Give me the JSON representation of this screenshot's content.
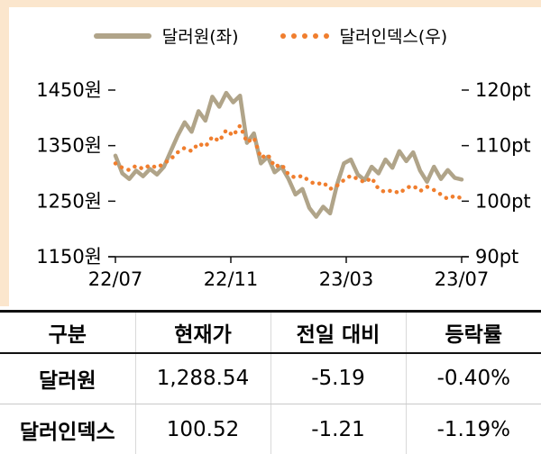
{
  "chart_data": {
    "type": "line",
    "legend_position": "top",
    "grid": false,
    "x_ticks": [
      "22/07",
      "22/11",
      "23/03",
      "23/07"
    ],
    "y_axis_left": {
      "min": 1150,
      "max": 1450,
      "ticks": [
        1450,
        1350,
        1250,
        1150
      ],
      "suffix": "원"
    },
    "y_axis_right": {
      "min": 90,
      "max": 120,
      "ticks": [
        120,
        110,
        100,
        90
      ],
      "suffix": "pt"
    },
    "series": [
      {
        "name": "달러원(좌)",
        "axis": "left",
        "style": "solid",
        "color": "#b0a489",
        "values": [
          1332,
          1300,
          1290,
          1305,
          1295,
          1308,
          1298,
          1312,
          1340,
          1368,
          1392,
          1375,
          1412,
          1395,
          1438,
          1420,
          1445,
          1428,
          1440,
          1355,
          1372,
          1318,
          1330,
          1302,
          1312,
          1290,
          1262,
          1272,
          1238,
          1222,
          1240,
          1228,
          1280,
          1318,
          1325,
          1298,
          1288,
          1312,
          1300,
          1325,
          1310,
          1340,
          1322,
          1338,
          1305,
          1285,
          1312,
          1290,
          1306,
          1292,
          1289
        ]
      },
      {
        "name": "달러인덱스(우)",
        "axis": "right",
        "style": "dotted",
        "color": "#f07e2e",
        "values": [
          106.8,
          106.0,
          105.6,
          106.4,
          105.8,
          106.5,
          106.0,
          106.8,
          107.6,
          108.8,
          109.6,
          109.0,
          110.4,
          109.8,
          111.6,
          110.8,
          112.8,
          111.8,
          113.6,
          110.6,
          111.4,
          107.8,
          108.4,
          106.2,
          106.6,
          104.8,
          104.2,
          104.6,
          103.6,
          103.0,
          103.4,
          102.2,
          102.8,
          103.8,
          104.6,
          104.0,
          103.4,
          104.2,
          102.2,
          101.6,
          102.0,
          101.4,
          102.4,
          102.8,
          101.8,
          102.6,
          102.0,
          101.2,
          100.4,
          101.0,
          100.5
        ]
      }
    ]
  },
  "table": {
    "headers": [
      "구분",
      "현재가",
      "전일 대비",
      "등락률"
    ],
    "rows": [
      {
        "label": "달러원",
        "current": "1,288.54",
        "change": "-5.19",
        "change_pct": "-0.40%"
      },
      {
        "label": "달러인덱스",
        "current": "100.52",
        "change": "-1.21",
        "change_pct": "-1.19%"
      }
    ]
  },
  "colors": {
    "frame": "#fbe6cd",
    "usdkrw_line": "#b0a489",
    "dollar_index_line": "#f07e2e",
    "axis": "#111111",
    "row_separator": "#c9c9c9"
  }
}
